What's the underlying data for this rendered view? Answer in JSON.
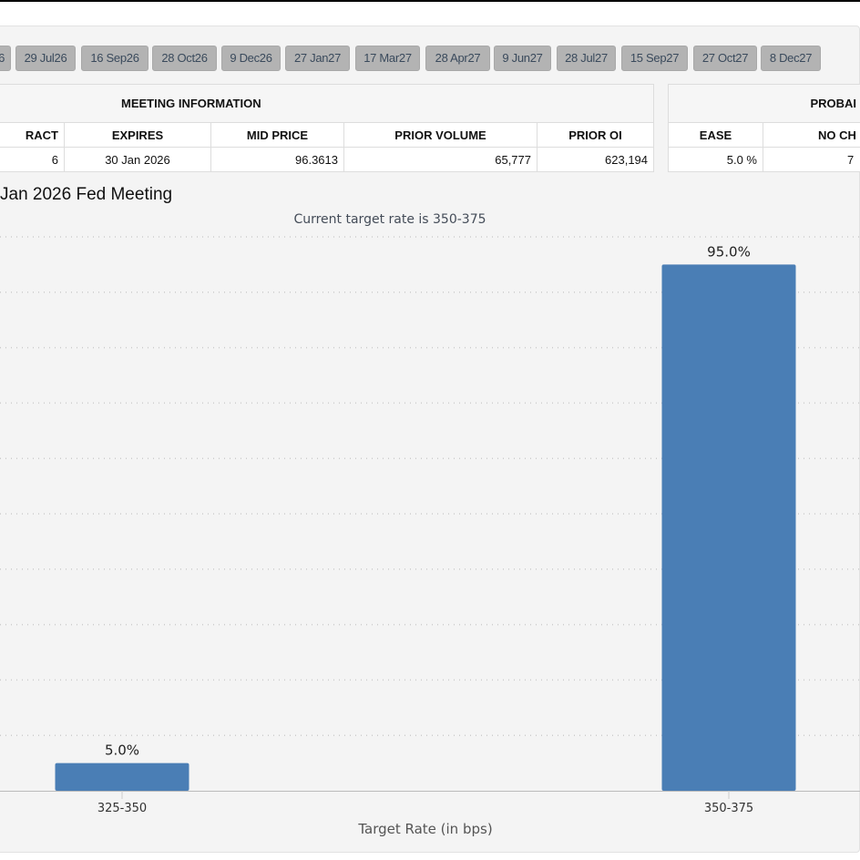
{
  "tabs": [
    "6",
    "29 Jul26",
    "16 Sep26",
    "28 Oct26",
    "9 Dec26",
    "27 Jan27",
    "17 Mar27",
    "28 Apr27",
    "9 Jun27",
    "28 Jul27",
    "15 Sep27",
    "27 Oct27",
    "8 Dec27"
  ],
  "meeting_info": {
    "title": "MEETING INFORMATION",
    "headers": [
      "RACT",
      "EXPIRES",
      "MID PRICE",
      "PRIOR VOLUME",
      "PRIOR OI"
    ],
    "row": [
      "6",
      "30 Jan 2026",
      "96.3613",
      "65,777",
      "623,194"
    ]
  },
  "probabilities": {
    "title": "PROBAI",
    "headers": [
      "EASE",
      "NO CH"
    ],
    "row": [
      "5.0 %",
      "7"
    ]
  },
  "chart_data": {
    "type": "bar",
    "title": "Jan 2026 Fed Meeting",
    "subtitle": "Current target rate is 350-375",
    "xlabel": "Target Rate (in bps)",
    "ylabel": "",
    "categories": [
      "325-350",
      "350-375"
    ],
    "values": [
      5.0,
      95.0
    ],
    "data_labels": [
      "5.0%",
      "95.0%"
    ],
    "ylim": [
      0,
      100
    ],
    "grid": true,
    "bar_color": "#4a7eb5"
  }
}
